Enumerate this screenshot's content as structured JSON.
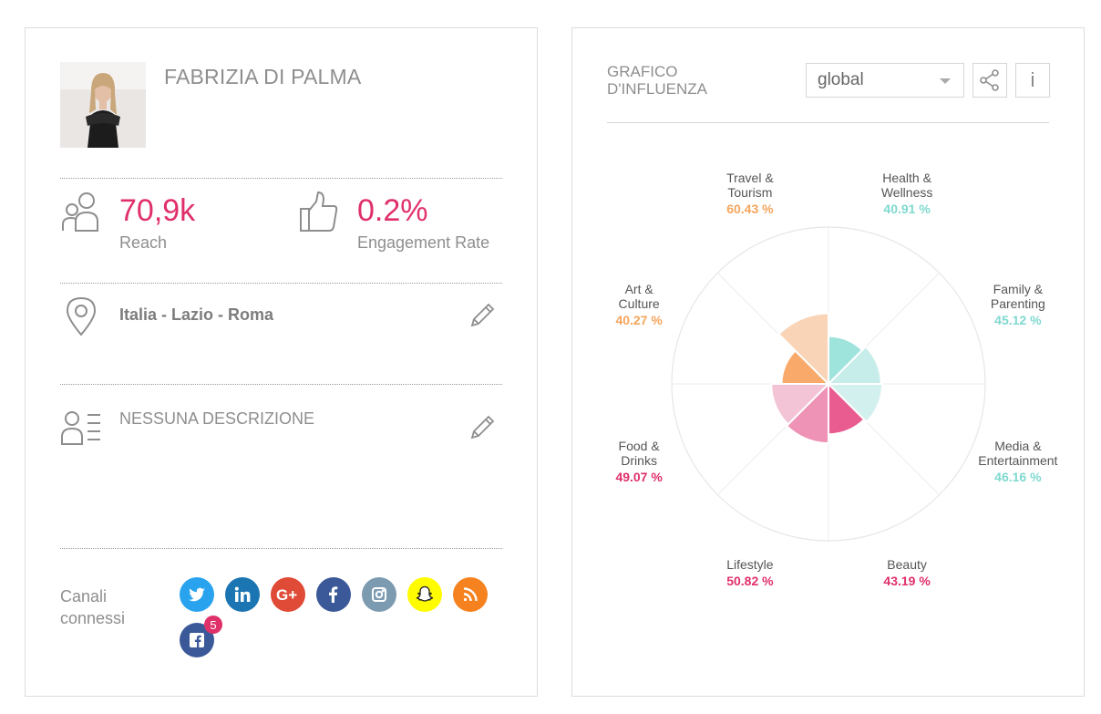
{
  "profile": {
    "name": "FABRIZIA DI PALMA",
    "reach_value": "70,9k",
    "reach_label": "Reach",
    "engagement_value": "0.2%",
    "engagement_label": "Engagement Rate",
    "location": "Italia - Lazio - Roma",
    "description": "NESSUNA DESCRIZIONE",
    "channels_label_line1": "Canali",
    "channels_label_line2": "connessi",
    "channels": [
      {
        "name": "twitter",
        "color": "#2aa3ef"
      },
      {
        "name": "linkedin",
        "color": "#1b75b2"
      },
      {
        "name": "google-plus",
        "color": "#df4b37"
      },
      {
        "name": "facebook",
        "color": "#3b5998"
      },
      {
        "name": "instagram",
        "color": "#7c9bb1"
      },
      {
        "name": "snapchat",
        "color": "#fffc00"
      },
      {
        "name": "rss",
        "color": "#f5821f"
      },
      {
        "name": "facebook-pages",
        "color": "#3b5998"
      }
    ],
    "pages_badge": "5"
  },
  "influence": {
    "title_line1": "GRAFICO",
    "title_line2": "D'INFLUENZA",
    "select_value": "global",
    "info_label": "i"
  },
  "chart_data": {
    "type": "polar-area",
    "max": 100,
    "categories": [
      {
        "line1": "Health &",
        "line2": "Wellness",
        "value_label": "40.91 %",
        "value": 40.91,
        "color": "#9ee3dc"
      },
      {
        "line1": "Family &",
        "line2": "Parenting",
        "value_label": "45.12 %",
        "value": 45.12,
        "color": "#c6ede9"
      },
      {
        "line1": "Media &",
        "line2": "Entertainment",
        "value_label": "46.16 %",
        "value": 46.16,
        "color": "#d2f0ed"
      },
      {
        "line1": "Beauty",
        "line2": "",
        "value_label": "43.19 %",
        "value": 43.19,
        "color": "#e85c8f"
      },
      {
        "line1": "Lifestyle",
        "line2": "",
        "value_label": "50.82 %",
        "value": 50.82,
        "color": "#ee93b5"
      },
      {
        "line1": "Food &",
        "line2": "Drinks",
        "value_label": "49.07 %",
        "value": 49.07,
        "color": "#f2c4d5"
      },
      {
        "line1": "Art &",
        "line2": "Culture",
        "value_label": "40.27 %",
        "value": 40.27,
        "color": "#f9aa6a"
      },
      {
        "line1": "Travel &",
        "line2": "Tourism",
        "value_label": "60.43 %",
        "value": 60.43,
        "color": "#f9d4b6"
      }
    ],
    "value_colors": [
      "#7fd9cf",
      "#7fd9cf",
      "#7fd9cf",
      "#e0306a",
      "#e0306a",
      "#e0306a",
      "#f5a55c",
      "#f5a55c"
    ]
  }
}
